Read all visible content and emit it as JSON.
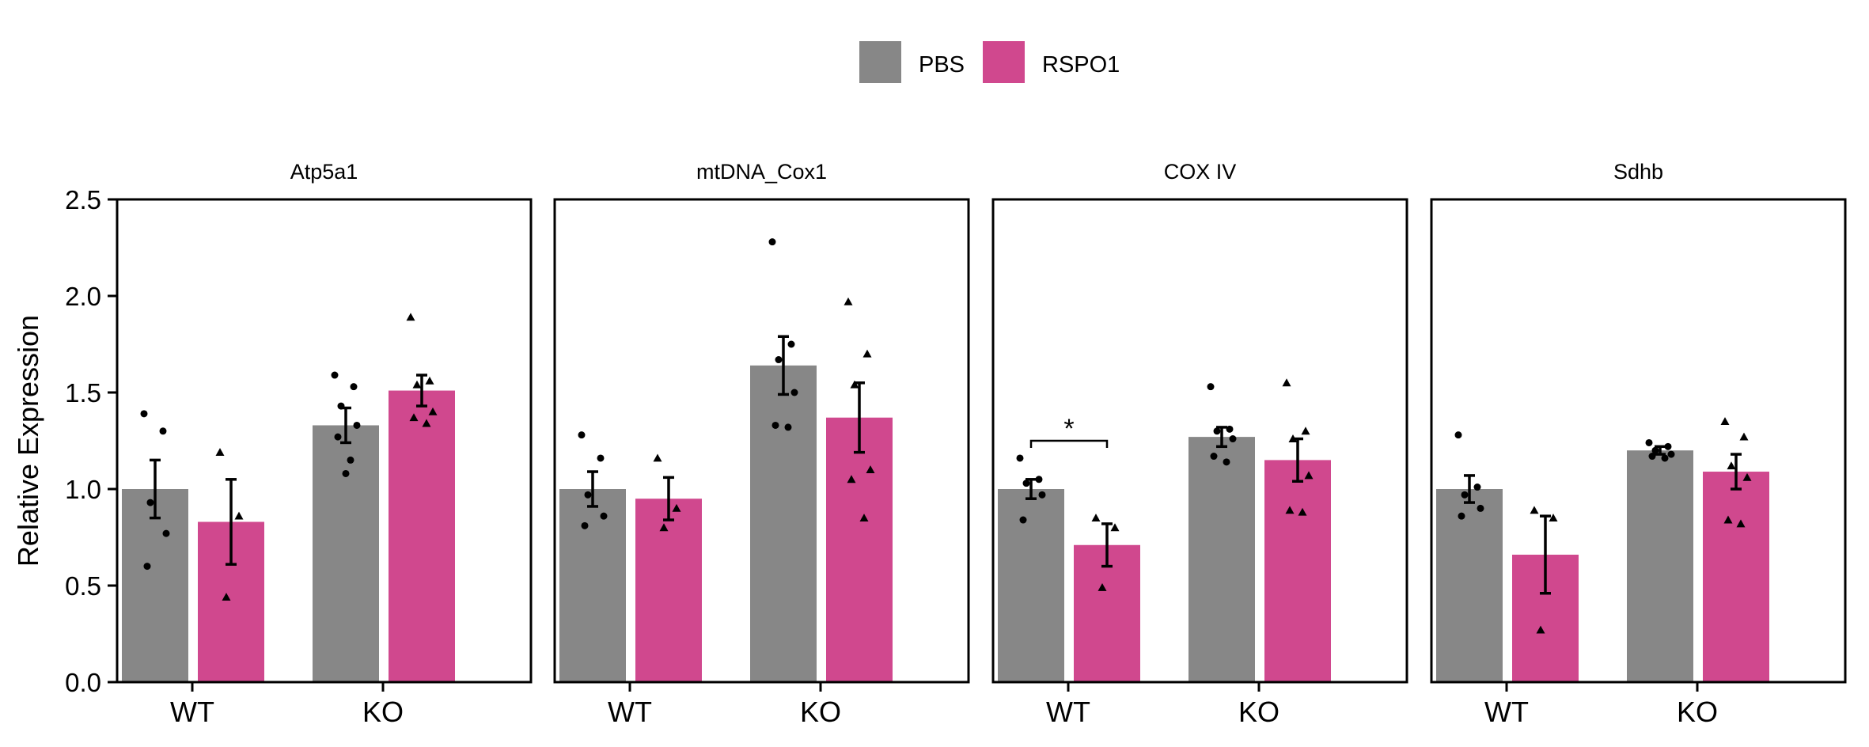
{
  "chart_data": {
    "type": "bar",
    "ylabel": "Relative Expression",
    "ylim": [
      0,
      2.5
    ],
    "yticks": [
      "0.0",
      "0.5",
      "1.0",
      "1.5",
      "2.0",
      "2.5"
    ],
    "categories": [
      "WT",
      "KO"
    ],
    "legend": {
      "placement": "top",
      "entries": [
        {
          "name": "PBS",
          "color": "#878787"
        },
        {
          "name": "RSPO1",
          "color": "#D0488E"
        }
      ]
    },
    "panels": [
      {
        "title": "Atp5a1",
        "series": [
          {
            "name": "PBS",
            "values": [
              1.0,
              1.33
            ],
            "errors": [
              0.15,
              0.09
            ],
            "points": [
              [
                1.39,
                1.3,
                0.93,
                0.77,
                0.6
              ],
              [
                1.59,
                1.53,
                1.43,
                1.33,
                1.27,
                1.15,
                1.08
              ]
            ]
          },
          {
            "name": "RSPO1",
            "values": [
              0.83,
              1.51
            ],
            "errors": [
              0.22,
              0.08
            ],
            "points": [
              [
                1.19,
                0.86,
                0.44
              ],
              [
                1.89,
                1.56,
                1.54,
                1.4,
                1.37,
                1.34
              ]
            ]
          }
        ],
        "annotations": []
      },
      {
        "title": "mtDNA_Cox1",
        "series": [
          {
            "name": "PBS",
            "values": [
              1.0,
              1.64
            ],
            "errors": [
              0.09,
              0.15
            ],
            "points": [
              [
                1.28,
                1.16,
                0.97,
                0.86,
                0.81
              ],
              [
                2.28,
                1.75,
                1.67,
                1.5,
                1.33,
                1.32
              ]
            ]
          },
          {
            "name": "RSPO1",
            "values": [
              0.95,
              1.37
            ],
            "errors": [
              0.11,
              0.18
            ],
            "points": [
              [
                1.16,
                0.9,
                0.8
              ],
              [
                1.97,
                1.7,
                1.54,
                1.1,
                1.05,
                0.85
              ]
            ]
          }
        ],
        "annotations": []
      },
      {
        "title": "COX IV",
        "series": [
          {
            "name": "PBS",
            "values": [
              1.0,
              1.27
            ],
            "errors": [
              0.05,
              0.05
            ],
            "points": [
              [
                1.16,
                1.05,
                1.03,
                0.97,
                0.84
              ],
              [
                1.53,
                1.31,
                1.3,
                1.26,
                1.17,
                1.14
              ]
            ]
          },
          {
            "name": "RSPO1",
            "values": [
              0.71,
              1.15
            ],
            "errors": [
              0.11,
              0.11
            ],
            "points": [
              [
                0.85,
                0.8,
                0.49
              ],
              [
                1.55,
                1.3,
                1.26,
                1.07,
                0.89,
                0.88
              ]
            ]
          }
        ],
        "annotations": [
          {
            "text": "*",
            "category": "WT",
            "y": 1.25
          }
        ]
      },
      {
        "title": "Sdhb",
        "series": [
          {
            "name": "PBS",
            "values": [
              1.0,
              1.2
            ],
            "errors": [
              0.07,
              0.02
            ],
            "points": [
              [
                1.28,
                1.01,
                0.97,
                0.9,
                0.86
              ],
              [
                1.24,
                1.22,
                1.2,
                1.18,
                1.17,
                1.16
              ]
            ]
          },
          {
            "name": "RSPO1",
            "values": [
              0.66,
              1.09
            ],
            "errors": [
              0.2,
              0.09
            ],
            "points": [
              [
                0.89,
                0.85,
                0.27
              ],
              [
                1.35,
                1.27,
                1.12,
                1.06,
                0.84,
                0.82
              ]
            ]
          }
        ],
        "annotations": []
      }
    ]
  }
}
